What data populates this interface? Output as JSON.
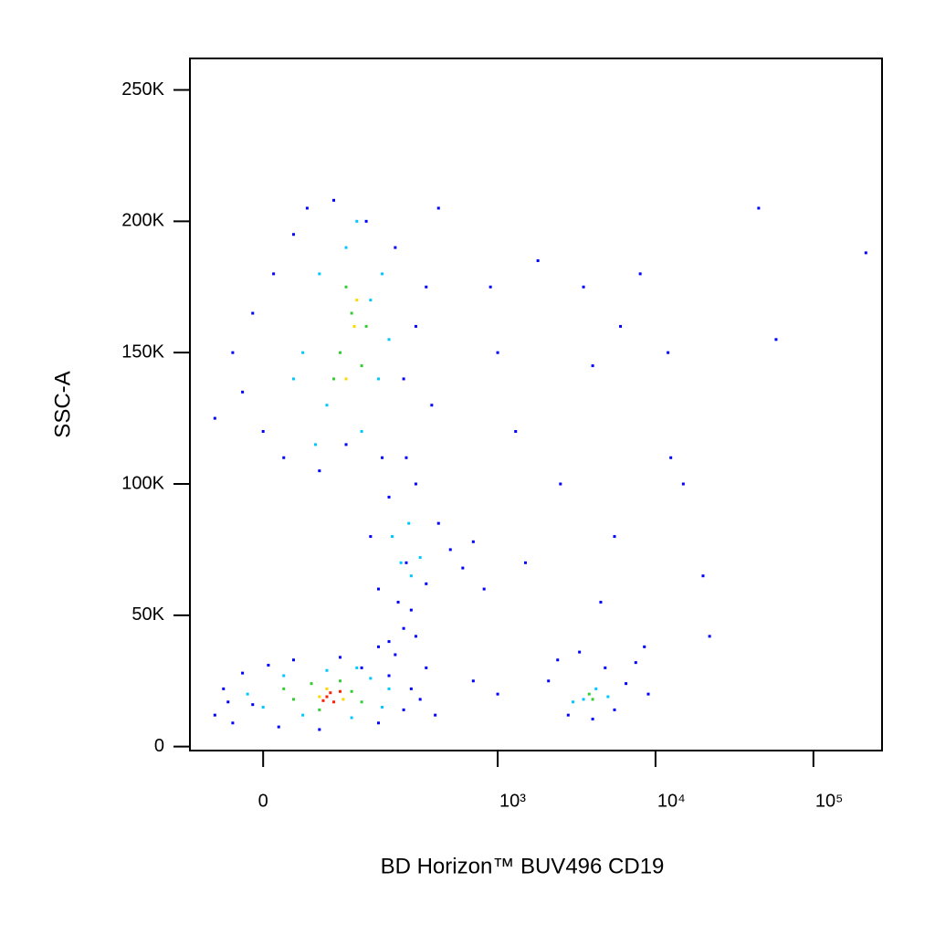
{
  "chart_data": {
    "type": "scatter",
    "xlabel": "BD Horizon™ BUV496 CD19",
    "ylabel": "SSC-A",
    "xscale": "logicle",
    "xlim": [
      -84,
      272000
    ],
    "ylim": [
      -1500,
      262000
    ],
    "xticks": [
      0,
      {
        "value": 1000,
        "label": "10³"
      },
      {
        "value": 10000,
        "label": "10⁴"
      },
      {
        "value": 100000,
        "label": "10⁵"
      }
    ],
    "yticks": [
      0,
      {
        "value": 50000,
        "label": "50K"
      },
      {
        "value": 100000,
        "label": "100K"
      },
      {
        "value": 150000,
        "label": "150K"
      },
      {
        "value": 200000,
        "label": "200K"
      },
      {
        "value": 250000,
        "label": "250K"
      }
    ],
    "series": [
      {
        "color": "#0000ff",
        "x": [
          -50,
          -40,
          -30,
          -20,
          -10,
          5,
          15,
          30,
          60,
          90,
          130,
          170,
          200,
          250,
          280,
          320,
          400,
          350,
          -35,
          220,
          -30,
          -20,
          -10,
          0,
          10,
          20,
          30,
          45,
          60,
          80,
          100,
          140,
          180,
          220,
          250,
          300,
          350,
          420,
          -50,
          380,
          260,
          150,
          170,
          200,
          230,
          260,
          300,
          350,
          420,
          500,
          600,
          700,
          820,
          280,
          200,
          250,
          170,
          300,
          2100,
          2400,
          2800,
          3300,
          4000,
          4800,
          5500,
          6500,
          7500,
          9000,
          8500,
          1000,
          1300,
          1800,
          2500,
          3500,
          4000,
          6000,
          8000,
          12000,
          15000,
          20000,
          22000,
          45000,
          58000,
          215000,
          1500,
          700,
          1000,
          5500,
          12500,
          900,
          4500
        ],
        "y": [
          12000,
          22000,
          9000,
          28000,
          16000,
          31000,
          7500,
          33000,
          6500,
          34000,
          30000,
          9000,
          27000,
          14000,
          22000,
          18000,
          12000,
          30000,
          17000,
          35000,
          150000,
          135000,
          165000,
          120000,
          180000,
          110000,
          195000,
          205000,
          105000,
          208000,
          115000,
          200000,
          110000,
          190000,
          140000,
          160000,
          175000,
          205000,
          125000,
          130000,
          110000,
          80000,
          60000,
          95000,
          55000,
          70000,
          100000,
          62000,
          85000,
          75000,
          68000,
          78000,
          60000,
          52000,
          40000,
          45000,
          38000,
          42000,
          25000,
          33000,
          12000,
          36000,
          10500,
          30000,
          14000,
          24000,
          32000,
          20000,
          38000,
          150000,
          120000,
          185000,
          100000,
          175000,
          145000,
          160000,
          180000,
          150000,
          100000,
          65000,
          42000,
          205000,
          155000,
          188000,
          70000,
          25000,
          20000,
          80000,
          110000,
          175000,
          55000
        ]
      },
      {
        "color": "#00c8ff",
        "x": [
          0,
          20,
          40,
          70,
          110,
          150,
          180,
          -15,
          200,
          120,
          40,
          60,
          70,
          100,
          130,
          150,
          170,
          200,
          55,
          120,
          180,
          30,
          210,
          240,
          270,
          320,
          280,
          3500,
          4200,
          3000,
          5000
        ],
        "y": [
          15000,
          27000,
          12000,
          29000,
          11000,
          26000,
          15000,
          20000,
          22000,
          30000,
          150000,
          180000,
          130000,
          190000,
          120000,
          170000,
          140000,
          155000,
          115000,
          200000,
          180000,
          140000,
          80000,
          70000,
          85000,
          72000,
          65000,
          18000,
          22000,
          17000,
          19000
        ]
      },
      {
        "color": "#32cd32",
        "x": [
          30,
          50,
          60,
          110,
          130,
          90,
          20,
          90,
          110,
          130,
          100,
          80,
          140,
          4000,
          3800
        ],
        "y": [
          18000,
          24000,
          14000,
          21000,
          17000,
          25000,
          22000,
          150000,
          165000,
          145000,
          175000,
          140000,
          160000,
          18000,
          20000
        ]
      },
      {
        "color": "#ffd700",
        "x": [
          60,
          95,
          70,
          115,
          100,
          120
        ],
        "y": [
          19000,
          18000,
          22000,
          160000,
          140000,
          170000
        ]
      },
      {
        "color": "#ff2000",
        "x": [
          70,
          80,
          90,
          75,
          65
        ],
        "y": [
          19000,
          17000,
          21000,
          20500,
          17500
        ]
      }
    ]
  }
}
